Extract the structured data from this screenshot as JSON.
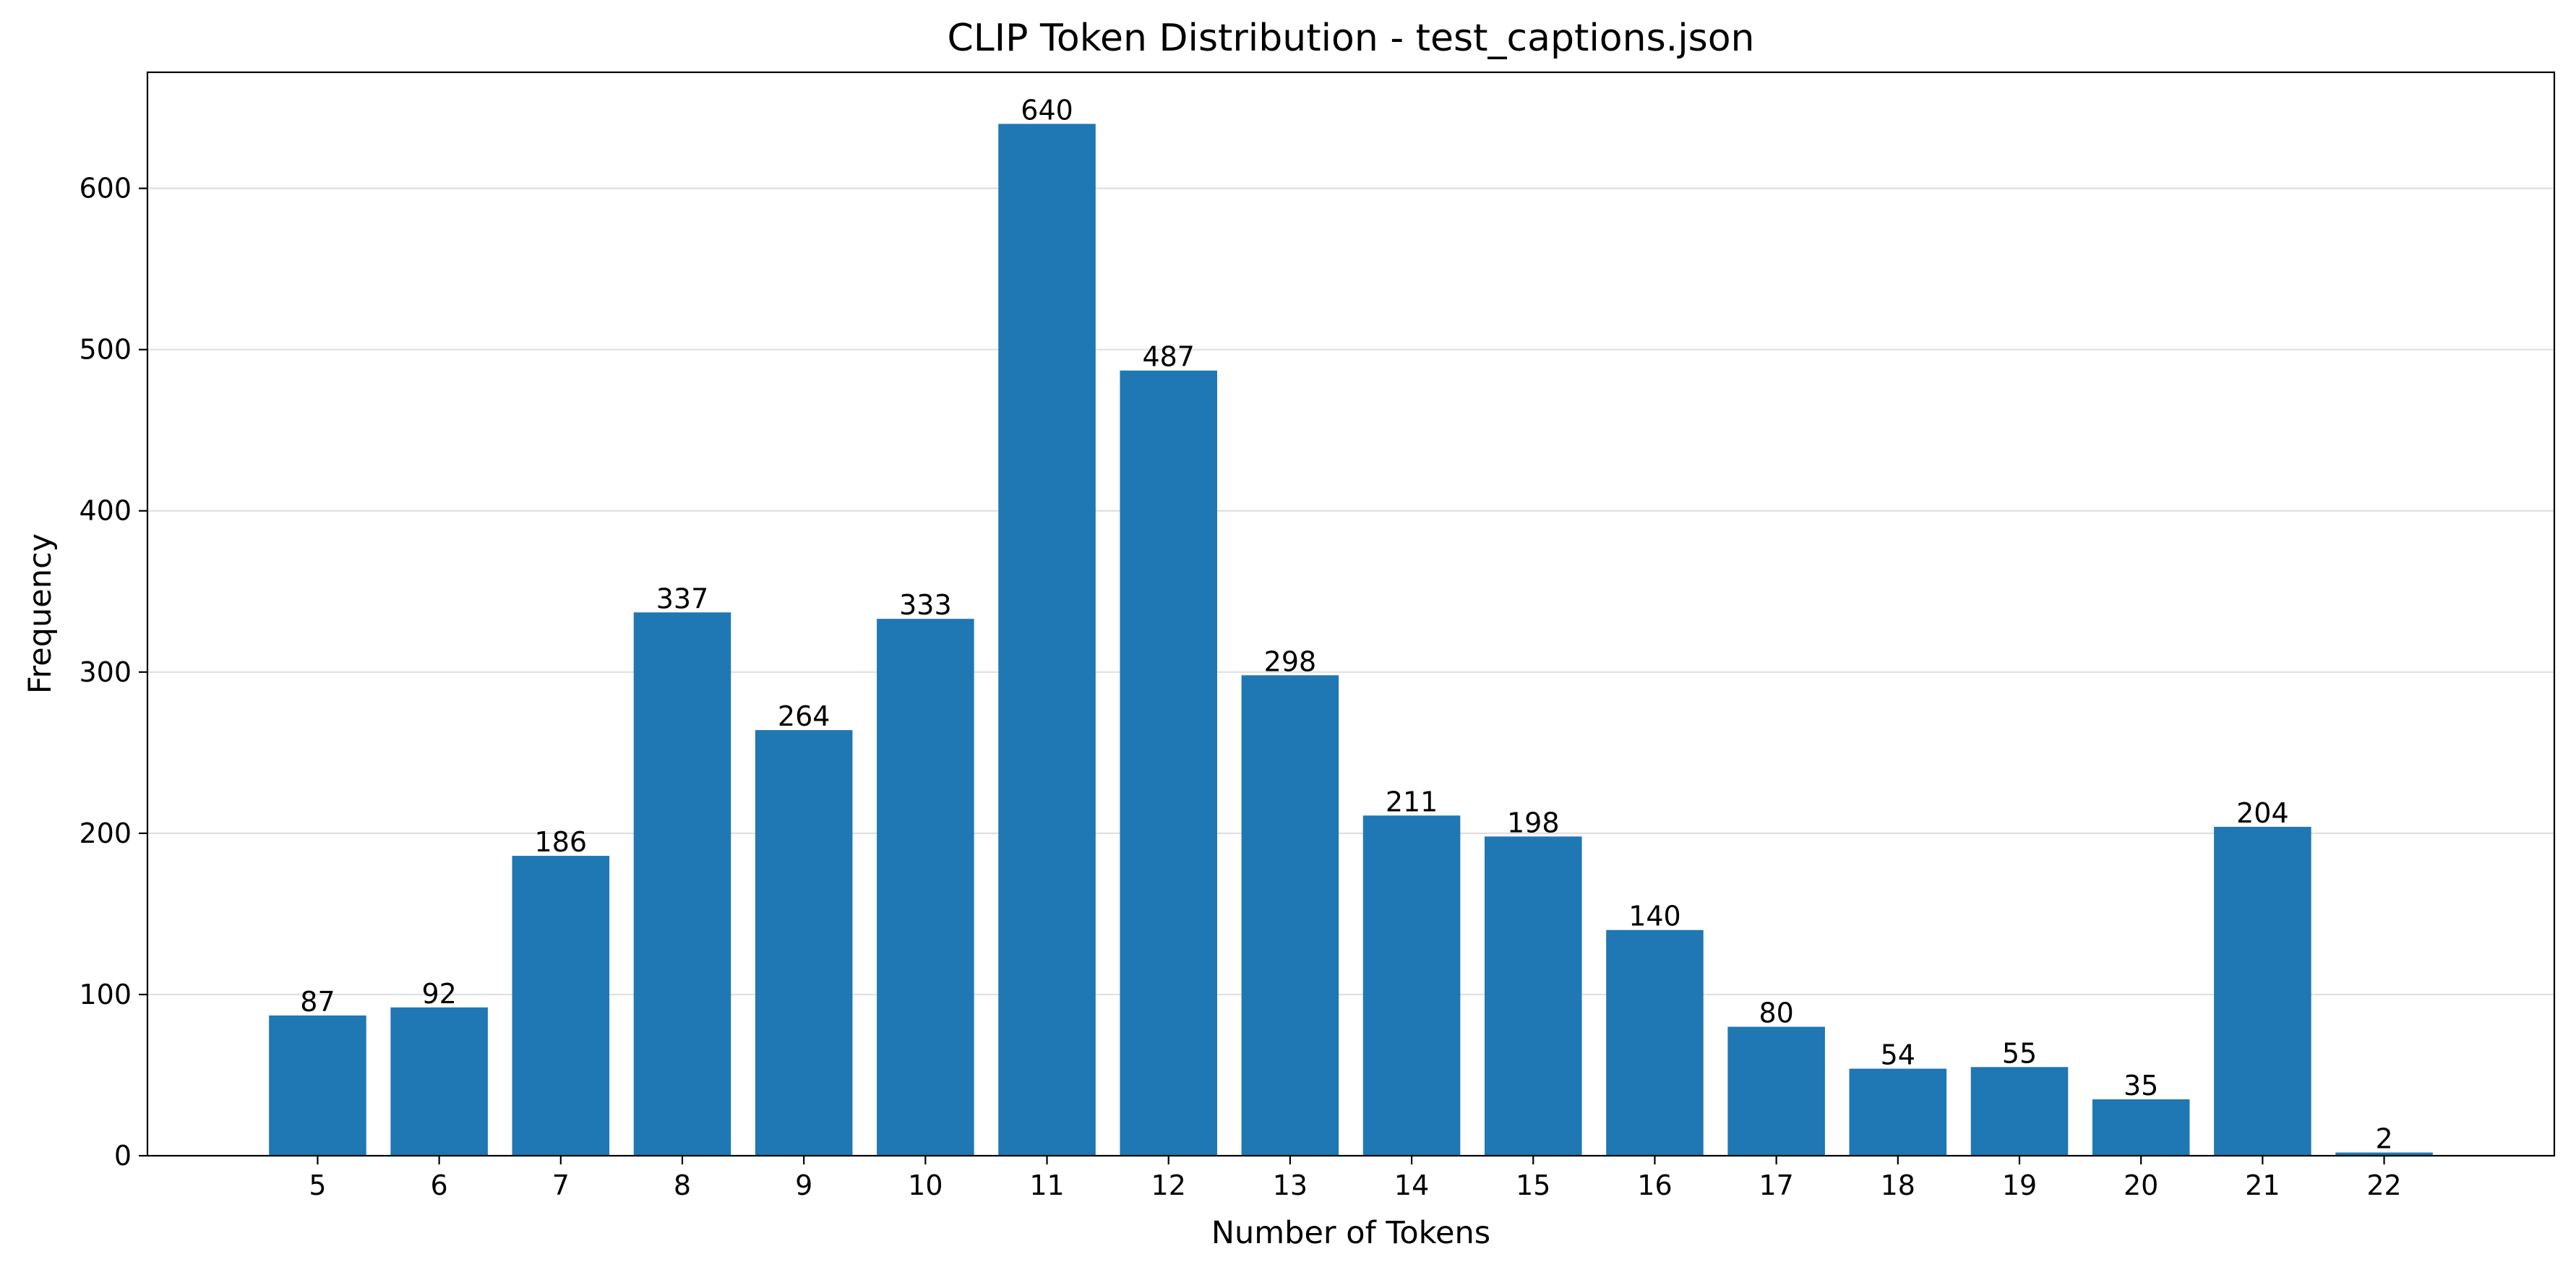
{
  "chart_data": {
    "type": "bar",
    "title": "CLIP Token Distribution - test_captions.json",
    "xlabel": "Number of Tokens",
    "ylabel": "Frequency",
    "categories": [
      "5",
      "6",
      "7",
      "8",
      "9",
      "10",
      "11",
      "12",
      "13",
      "14",
      "15",
      "16",
      "17",
      "18",
      "19",
      "20",
      "21",
      "22"
    ],
    "values": [
      87,
      92,
      186,
      337,
      264,
      333,
      640,
      487,
      298,
      211,
      198,
      140,
      80,
      54,
      55,
      35,
      204,
      2
    ],
    "value_labels": [
      "87",
      "92",
      "186",
      "337",
      "264",
      "333",
      "640",
      "487",
      "298",
      "211",
      "198",
      "140",
      "80",
      "54",
      "55",
      "35",
      "204",
      "2"
    ],
    "yticks": [
      "0",
      "100",
      "200",
      "300",
      "400",
      "500",
      "600"
    ],
    "ylim": [
      0,
      672
    ],
    "xlim": [
      3.6,
      23.4
    ],
    "grid": "y",
    "bar_color": "#1f77b4"
  }
}
